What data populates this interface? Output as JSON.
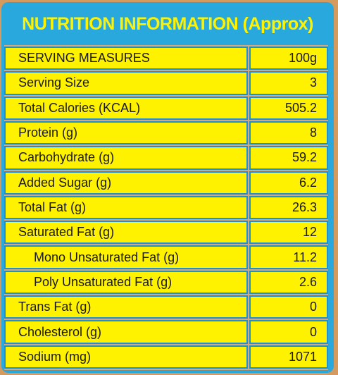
{
  "title": "NUTRITION INFORMATION (Approx)",
  "table": {
    "rows": [
      [
        "SERVING MEASURES",
        "100g"
      ],
      [
        "Serving Size",
        "3"
      ],
      [
        "Total Calories (KCAL)",
        "505.2"
      ],
      [
        "Protein (g)",
        "8"
      ],
      [
        "Carbohydrate (g)",
        "59.2"
      ],
      [
        "Added Sugar (g)",
        "6.2"
      ],
      [
        "Total Fat (g)",
        "26.3"
      ],
      [
        "Saturated Fat (g)",
        "12"
      ],
      [
        "Mono Unsaturated Fat (g)",
        "11.2"
      ],
      [
        "Poly Unsaturated Fat (g)",
        "2.6"
      ],
      [
        "Trans Fat (g)",
        "0"
      ],
      [
        "Cholesterol (g)",
        "0"
      ],
      [
        "Sodium (mg)",
        "1071"
      ]
    ]
  }
}
